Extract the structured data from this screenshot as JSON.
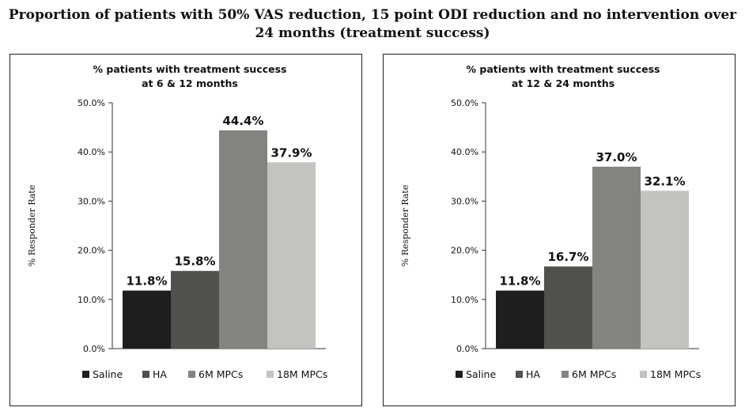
{
  "title_lines": [
    "Proportion of patients with 50% VAS reduction, 15 point ODI reduction and no intervention over",
    "24 months (treatment success)"
  ],
  "colors": {
    "Saline": "#1e1e1e",
    "HA": "#4f524c",
    "6M MPCs": "#838480",
    "18M MPCs": "#c3c3bf"
  },
  "chart_data": [
    {
      "type": "bar",
      "title": [
        "% patients with treatment success",
        "at 6 & 12 months"
      ],
      "ylabel": "% Responder Rate",
      "ylim": [
        0,
        50
      ],
      "yticks": [
        "0.0%",
        "10.0%",
        "20.0%",
        "30.0%",
        "40.0%",
        "50.0%"
      ],
      "grid": false,
      "legend": "bottom",
      "series": [
        {
          "name": "Saline",
          "value": 11.8,
          "label": "11.8%"
        },
        {
          "name": "HA",
          "value": 15.8,
          "label": "15.8%"
        },
        {
          "name": "6M MPCs",
          "value": 44.4,
          "label": "44.4%"
        },
        {
          "name": "18M MPCs",
          "value": 37.9,
          "label": "37.9%"
        }
      ]
    },
    {
      "type": "bar",
      "title": [
        "% patients with treatment success",
        "at 12 & 24 months"
      ],
      "ylabel": "% Responder Rate",
      "ylim": [
        0,
        50
      ],
      "yticks": [
        "0.0%",
        "10.0%",
        "20.0%",
        "30.0%",
        "40.0%",
        "50.0%"
      ],
      "grid": false,
      "legend": "bottom",
      "series": [
        {
          "name": "Saline",
          "value": 11.8,
          "label": "11.8%"
        },
        {
          "name": "HA",
          "value": 16.7,
          "label": "16.7%"
        },
        {
          "name": "6M MPCs",
          "value": 37.0,
          "label": "37.0%"
        },
        {
          "name": "18M MPCs",
          "value": 32.1,
          "label": "32.1%"
        }
      ]
    }
  ]
}
